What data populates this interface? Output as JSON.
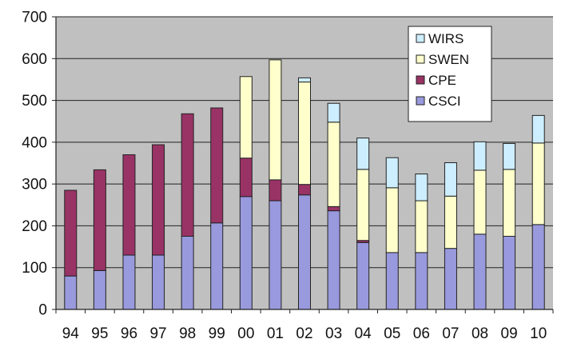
{
  "chart_data": {
    "type": "bar",
    "stacked": true,
    "categories": [
      "94",
      "95",
      "96",
      "97",
      "98",
      "99",
      "00",
      "01",
      "02",
      "03",
      "04",
      "05",
      "06",
      "07",
      "08",
      "09",
      "10"
    ],
    "series": [
      {
        "name": "CSCI",
        "color": "#9999dd",
        "values": [
          80,
          93,
          130,
          130,
          175,
          207,
          270,
          260,
          274,
          236,
          160,
          136,
          136,
          146,
          180,
          175,
          203
        ]
      },
      {
        "name": "CPE",
        "color": "#993366",
        "values": [
          205,
          241,
          240,
          264,
          293,
          275,
          92,
          50,
          25,
          10,
          5,
          0,
          0,
          0,
          0,
          0,
          0
        ]
      },
      {
        "name": "SWEN",
        "color": "#ffffcc",
        "values": [
          0,
          0,
          0,
          0,
          0,
          0,
          195,
          287,
          245,
          202,
          170,
          155,
          124,
          125,
          153,
          160,
          195
        ]
      },
      {
        "name": "WIRS",
        "color": "#cceeff",
        "values": [
          0,
          0,
          0,
          0,
          0,
          0,
          0,
          0,
          10,
          45,
          75,
          72,
          64,
          80,
          68,
          62,
          66
        ]
      }
    ],
    "legend_order": [
      "WIRS",
      "SWEN",
      "CPE",
      "CSCI"
    ],
    "ylim": [
      0,
      700
    ],
    "yticks": [
      0,
      100,
      200,
      300,
      400,
      500,
      600,
      700
    ],
    "grid": true,
    "legend_position": "top-right",
    "plot_background": "#c0c0c0"
  }
}
